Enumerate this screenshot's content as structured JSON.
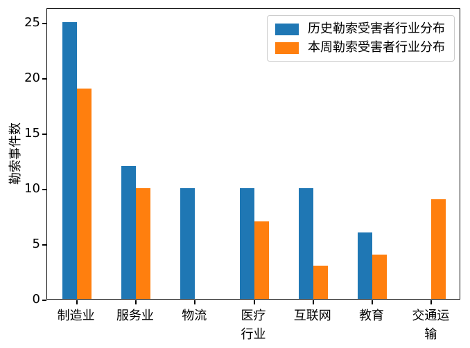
{
  "chart_data": {
    "type": "bar",
    "title": "",
    "xlabel": "",
    "ylabel": "勒索事件数",
    "categories": [
      "制造业",
      "服务业",
      "物流",
      "医疗\n行业",
      "互联网",
      "教育",
      "交通运输"
    ],
    "series": [
      {
        "name": "历史勒索受害者行业分布",
        "color": "#1f77b4",
        "values": [
          25,
          12,
          10,
          10,
          10,
          6,
          0
        ]
      },
      {
        "name": "本周勒索受害者行业分布",
        "color": "#ff7f0e",
        "values": [
          19,
          10,
          0,
          7,
          3,
          4,
          9
        ]
      }
    ],
    "yticks": [
      0,
      5,
      10,
      15,
      20,
      25
    ],
    "ylim": [
      0,
      26.3125
    ],
    "grid": false,
    "legend_position": "upper right",
    "axis_color": "#000000",
    "background_color": "#ffffff"
  }
}
